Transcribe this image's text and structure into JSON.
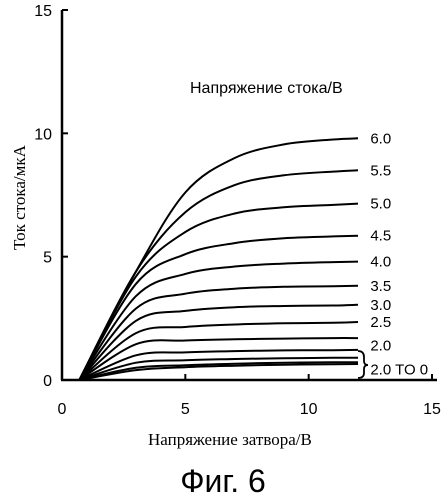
{
  "chart_data": {
    "type": "line",
    "xlabel": "Напряжение затвора/В",
    "ylabel": "Ток стока/мкА",
    "xlim": [
      0,
      15
    ],
    "ylim": [
      0,
      15
    ],
    "x_ticks": [
      "0",
      "5",
      "10",
      "15"
    ],
    "y_ticks": [
      "0",
      "5",
      "10",
      "15"
    ],
    "legend_title": "Напряжение стока/В",
    "caption": "Фиг. 6",
    "grid": false,
    "series": [
      {
        "name": "6.0",
        "x": [
          0.7,
          3,
          5,
          7,
          9,
          11,
          12
        ],
        "y": [
          0,
          4.4,
          7.6,
          9.0,
          9.55,
          9.75,
          9.8
        ]
      },
      {
        "name": "5.5",
        "x": [
          0.7,
          3,
          5,
          7,
          9,
          11,
          12
        ],
        "y": [
          0,
          4.4,
          6.8,
          7.9,
          8.3,
          8.45,
          8.5
        ]
      },
      {
        "name": "5.0",
        "x": [
          0.7,
          3,
          5,
          7,
          9,
          11,
          12
        ],
        "y": [
          0,
          4.2,
          6.0,
          6.75,
          7.0,
          7.1,
          7.15
        ]
      },
      {
        "name": "4.5",
        "x": [
          0.7,
          3,
          5,
          7,
          9,
          11,
          12
        ],
        "y": [
          0,
          3.9,
          5.1,
          5.55,
          5.75,
          5.82,
          5.85
        ]
      },
      {
        "name": "4.0",
        "x": [
          0.7,
          3,
          5,
          7,
          9,
          11,
          12
        ],
        "y": [
          0,
          3.4,
          4.3,
          4.6,
          4.72,
          4.78,
          4.8
        ]
      },
      {
        "name": "3.5",
        "x": [
          0.7,
          3,
          5,
          7,
          9,
          11,
          12
        ],
        "y": [
          0,
          2.9,
          3.5,
          3.7,
          3.78,
          3.8,
          3.82
        ]
      },
      {
        "name": "3.0",
        "x": [
          0.7,
          3,
          5,
          7,
          9,
          11,
          12
        ],
        "y": [
          0,
          2.4,
          2.8,
          2.95,
          3.0,
          3.02,
          3.05
        ]
      },
      {
        "name": "2.5",
        "x": [
          0.7,
          3,
          5,
          7,
          9,
          11,
          12
        ],
        "y": [
          0,
          1.9,
          2.15,
          2.25,
          2.3,
          2.32,
          2.35
        ]
      },
      {
        "name": "2.0",
        "x": [
          0.7,
          3,
          5,
          7,
          9,
          11,
          12
        ],
        "y": [
          0,
          1.45,
          1.6,
          1.65,
          1.68,
          1.7,
          1.7
        ]
      },
      {
        "name": "",
        "x": [
          0.7,
          3,
          5,
          7,
          9,
          11,
          12
        ],
        "y": [
          0,
          1.0,
          1.12,
          1.17,
          1.2,
          1.21,
          1.22
        ]
      },
      {
        "name": "",
        "x": [
          0.7,
          3,
          5,
          7,
          9,
          11,
          12
        ],
        "y": [
          0,
          0.7,
          0.8,
          0.85,
          0.88,
          0.9,
          0.9
        ]
      },
      {
        "name": "",
        "x": [
          0.7,
          3,
          5,
          7,
          9,
          11,
          12
        ],
        "y": [
          0,
          0.5,
          0.6,
          0.66,
          0.7,
          0.72,
          0.72
        ]
      },
      {
        "name": "",
        "x": [
          0.7,
          3,
          5,
          7,
          9,
          11,
          12
        ],
        "y": [
          0,
          0.4,
          0.52,
          0.58,
          0.62,
          0.64,
          0.65
        ]
      }
    ],
    "labels": [
      {
        "text": "6.0",
        "x": 12.5,
        "y": 9.8
      },
      {
        "text": "5.5",
        "x": 12.5,
        "y": 8.5
      },
      {
        "text": "5.0",
        "x": 12.5,
        "y": 7.15
      },
      {
        "text": "4.5",
        "x": 12.5,
        "y": 5.85
      },
      {
        "text": "4.0",
        "x": 12.5,
        "y": 4.8
      },
      {
        "text": "3.5",
        "x": 12.5,
        "y": 3.82
      },
      {
        "text": "3.0",
        "x": 12.5,
        "y": 3.05
      },
      {
        "text": "2.5",
        "x": 12.5,
        "y": 2.35
      },
      {
        "text": "2.0",
        "x": 12.5,
        "y": 1.4
      },
      {
        "text": "2.0 TO 0",
        "x": 12.5,
        "y": 0.42
      }
    ]
  }
}
